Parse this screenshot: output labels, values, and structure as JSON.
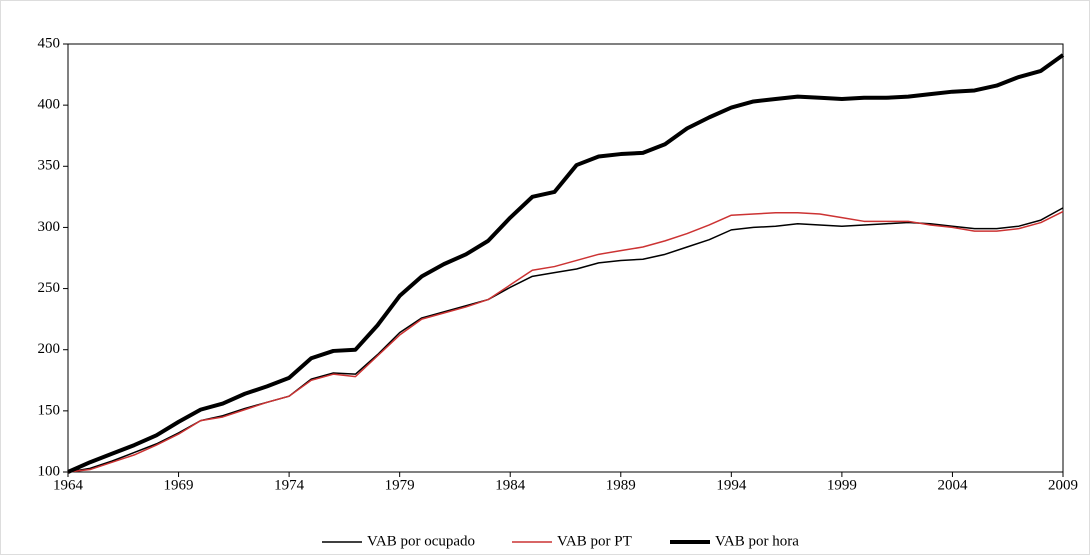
{
  "chart_data": {
    "type": "line",
    "x": [
      1964,
      1965,
      1966,
      1967,
      1968,
      1969,
      1970,
      1971,
      1972,
      1973,
      1974,
      1975,
      1976,
      1977,
      1978,
      1979,
      1980,
      1981,
      1982,
      1983,
      1984,
      1985,
      1986,
      1987,
      1988,
      1989,
      1990,
      1991,
      1992,
      1993,
      1994,
      1995,
      1996,
      1997,
      1998,
      1999,
      2000,
      2001,
      2002,
      2003,
      2004,
      2005,
      2006,
      2007,
      2008,
      2009
    ],
    "series": [
      {
        "name": "VAB por ocupado",
        "color": "#000000",
        "values": [
          100,
          103,
          109,
          116,
          123,
          132,
          142,
          146,
          152,
          157,
          162,
          176,
          181,
          180,
          196,
          214,
          226,
          231,
          236,
          241,
          251,
          260,
          263,
          266,
          271,
          273,
          274,
          278,
          284,
          290,
          298,
          300,
          301,
          303,
          302,
          301,
          302,
          303,
          304,
          303,
          301,
          299,
          299,
          301,
          306,
          316
        ]
      },
      {
        "name": "VAB por PT",
        "color": "#cc3333",
        "values": [
          100,
          102,
          108,
          114,
          122,
          131,
          142,
          145,
          151,
          157,
          162,
          175,
          180,
          178,
          195,
          212,
          225,
          230,
          235,
          241,
          253,
          265,
          268,
          273,
          278,
          281,
          284,
          289,
          295,
          302,
          310,
          311,
          312,
          312,
          311,
          308,
          305,
          305,
          305,
          302,
          300,
          297,
          297,
          299,
          304,
          313
        ]
      },
      {
        "name": "VAB por hora",
        "color": "#000000",
        "values": [
          100,
          108,
          115,
          122,
          130,
          141,
          151,
          156,
          164,
          170,
          177,
          193,
          199,
          200,
          220,
          244,
          260,
          270,
          278,
          289,
          308,
          325,
          329,
          351,
          358,
          360,
          361,
          368,
          381,
          390,
          398,
          403,
          405,
          407,
          406,
          405,
          406,
          406,
          407,
          409,
          411,
          412,
          416,
          423,
          428,
          441
        ]
      }
    ],
    "xlim": [
      1964,
      2009
    ],
    "xticks": [
      1964,
      1969,
      1974,
      1979,
      1984,
      1989,
      1994,
      1999,
      2004,
      2009
    ],
    "ylim": [
      100,
      450
    ],
    "yticks": [
      100,
      150,
      200,
      250,
      300,
      350,
      400,
      450
    ],
    "legend": "bottom"
  }
}
